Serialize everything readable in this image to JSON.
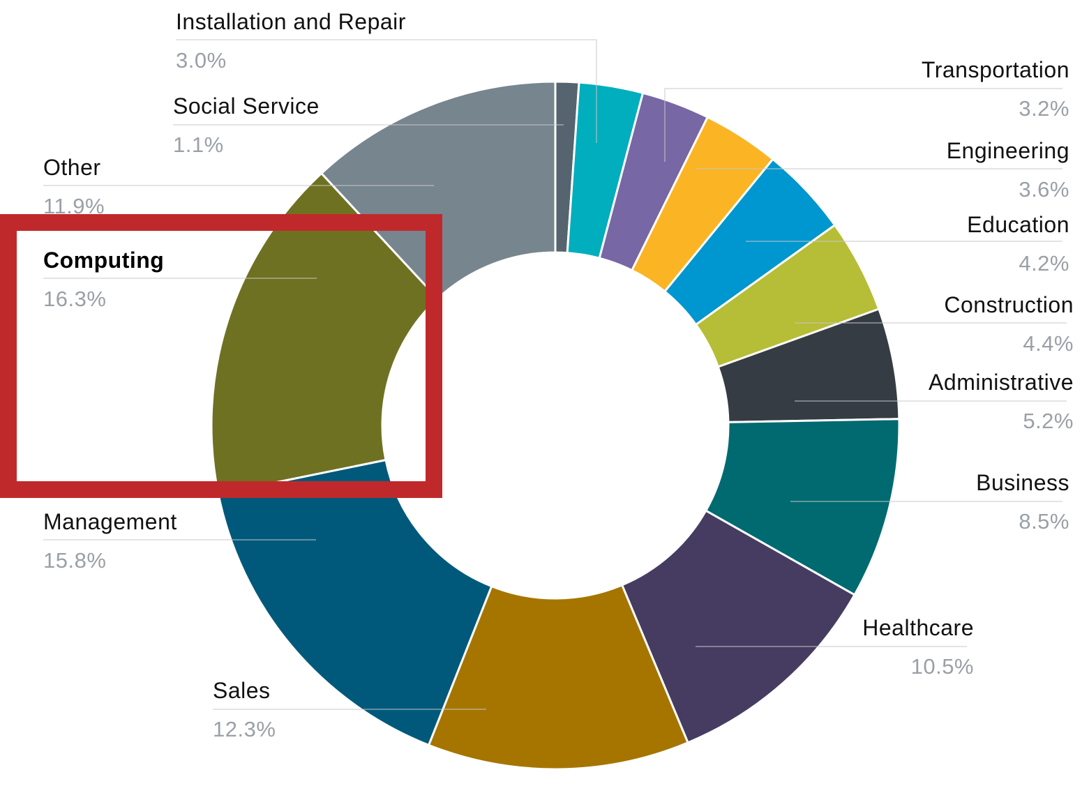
{
  "chart_data": {
    "type": "pie",
    "variant": "donut",
    "highlighted": "Computing",
    "highlight_color": "#c0292b",
    "slices": [
      {
        "label": "Social Service",
        "value": 1.1,
        "display": "1.1%",
        "color": "#55646e"
      },
      {
        "label": "Installation and Repair",
        "value": 3.0,
        "display": "3.0%",
        "color": "#00aebd"
      },
      {
        "label": "Transportation",
        "value": 3.2,
        "display": "3.2%",
        "color": "#7767a4"
      },
      {
        "label": "Engineering",
        "value": 3.6,
        "display": "3.6%",
        "color": "#fbb423"
      },
      {
        "label": "Education",
        "value": 4.2,
        "display": "4.2%",
        "color": "#0096cf"
      },
      {
        "label": "Construction",
        "value": 4.4,
        "display": "4.4%",
        "color": "#b6bd37"
      },
      {
        "label": "Administrative",
        "value": 5.2,
        "display": "5.2%",
        "color": "#363c43"
      },
      {
        "label": "Business",
        "value": 8.5,
        "display": "8.5%",
        "color": "#006a71"
      },
      {
        "label": "Healthcare",
        "value": 10.5,
        "display": "10.5%",
        "color": "#463c61"
      },
      {
        "label": "Sales",
        "value": 12.3,
        "display": "12.3%",
        "color": "#a57500"
      },
      {
        "label": "Management",
        "value": 15.8,
        "display": "15.8%",
        "color": "#00597a"
      },
      {
        "label": "Computing",
        "value": 16.3,
        "display": "16.3%",
        "color": "#6e7121"
      },
      {
        "label": "Other",
        "value": 11.9,
        "display": "11.9%",
        "color": "#77858f"
      }
    ]
  }
}
